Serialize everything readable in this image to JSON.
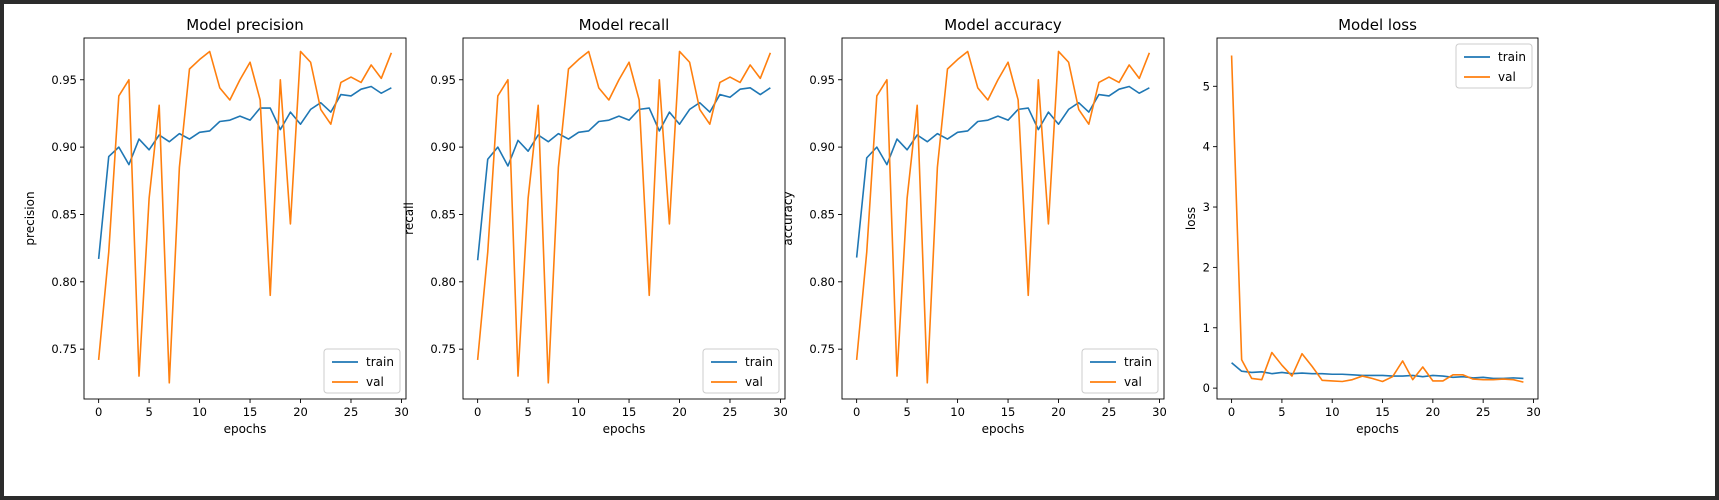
{
  "colors": {
    "train": "#1f77b4",
    "val": "#ff7f0e",
    "axis": "#000000",
    "background": "#ffffff",
    "frame": "#2b2b2b"
  },
  "chart_data": [
    {
      "type": "line",
      "title": "Model precision",
      "xlabel": "epochs",
      "ylabel": "precision",
      "xlim": [
        -1.45,
        30.45
      ],
      "ylim": [
        0.713,
        0.981
      ],
      "xticks": [
        0,
        5,
        10,
        15,
        20,
        25,
        30
      ],
      "yticks": [
        0.75,
        0.8,
        0.85,
        0.9,
        0.95
      ],
      "ytick_labels": [
        "0.75",
        "0.80",
        "0.85",
        "0.90",
        "0.95"
      ],
      "legend": "lower-right",
      "grid": false,
      "x": [
        0,
        1,
        2,
        3,
        4,
        5,
        6,
        7,
        8,
        9,
        10,
        11,
        12,
        13,
        14,
        15,
        16,
        17,
        18,
        19,
        20,
        21,
        22,
        23,
        24,
        25,
        26,
        27,
        28,
        29
      ],
      "series": [
        {
          "name": "train",
          "color": "#1f77b4",
          "values": [
            0.817,
            0.893,
            0.9,
            0.887,
            0.906,
            0.898,
            0.909,
            0.904,
            0.91,
            0.906,
            0.911,
            0.912,
            0.919,
            0.92,
            0.923,
            0.92,
            0.929,
            0.929,
            0.913,
            0.926,
            0.917,
            0.928,
            0.933,
            0.926,
            0.939,
            0.938,
            0.943,
            0.945,
            0.94,
            0.944
          ]
        },
        {
          "name": "val",
          "color": "#ff7f0e",
          "values": [
            0.742,
            0.822,
            0.938,
            0.95,
            0.73,
            0.862,
            0.931,
            0.725,
            0.885,
            0.958,
            0.965,
            0.971,
            0.944,
            0.935,
            0.95,
            0.963,
            0.935,
            0.79,
            0.95,
            0.843,
            0.971,
            0.963,
            0.928,
            0.917,
            0.948,
            0.952,
            0.948,
            0.961,
            0.951,
            0.97
          ]
        }
      ]
    },
    {
      "type": "line",
      "title": "Model recall",
      "xlabel": "epochs",
      "ylabel": "recall",
      "xlim": [
        -1.45,
        30.45
      ],
      "ylim": [
        0.713,
        0.981
      ],
      "xticks": [
        0,
        5,
        10,
        15,
        20,
        25,
        30
      ],
      "yticks": [
        0.75,
        0.8,
        0.85,
        0.9,
        0.95
      ],
      "ytick_labels": [
        "0.75",
        "0.80",
        "0.85",
        "0.90",
        "0.95"
      ],
      "legend": "lower-right",
      "grid": false,
      "x": [
        0,
        1,
        2,
        3,
        4,
        5,
        6,
        7,
        8,
        9,
        10,
        11,
        12,
        13,
        14,
        15,
        16,
        17,
        18,
        19,
        20,
        21,
        22,
        23,
        24,
        25,
        26,
        27,
        28,
        29
      ],
      "series": [
        {
          "name": "train",
          "color": "#1f77b4",
          "values": [
            0.816,
            0.891,
            0.9,
            0.886,
            0.905,
            0.897,
            0.909,
            0.904,
            0.91,
            0.906,
            0.911,
            0.912,
            0.919,
            0.92,
            0.923,
            0.92,
            0.928,
            0.929,
            0.912,
            0.926,
            0.917,
            0.928,
            0.933,
            0.926,
            0.939,
            0.937,
            0.943,
            0.944,
            0.939,
            0.944
          ]
        },
        {
          "name": "val",
          "color": "#ff7f0e",
          "values": [
            0.742,
            0.822,
            0.938,
            0.95,
            0.73,
            0.862,
            0.931,
            0.725,
            0.885,
            0.958,
            0.965,
            0.971,
            0.944,
            0.935,
            0.95,
            0.963,
            0.935,
            0.79,
            0.95,
            0.843,
            0.971,
            0.963,
            0.928,
            0.917,
            0.948,
            0.952,
            0.948,
            0.961,
            0.951,
            0.97
          ]
        }
      ]
    },
    {
      "type": "line",
      "title": "Model accuracy",
      "xlabel": "epochs",
      "ylabel": "accuracy",
      "xlim": [
        -1.45,
        30.45
      ],
      "ylim": [
        0.713,
        0.981
      ],
      "xticks": [
        0,
        5,
        10,
        15,
        20,
        25,
        30
      ],
      "yticks": [
        0.75,
        0.8,
        0.85,
        0.9,
        0.95
      ],
      "ytick_labels": [
        "0.75",
        "0.80",
        "0.85",
        "0.90",
        "0.95"
      ],
      "legend": "lower-right",
      "grid": false,
      "x": [
        0,
        1,
        2,
        3,
        4,
        5,
        6,
        7,
        8,
        9,
        10,
        11,
        12,
        13,
        14,
        15,
        16,
        17,
        18,
        19,
        20,
        21,
        22,
        23,
        24,
        25,
        26,
        27,
        28,
        29
      ],
      "series": [
        {
          "name": "train",
          "color": "#1f77b4",
          "values": [
            0.818,
            0.892,
            0.9,
            0.887,
            0.906,
            0.898,
            0.909,
            0.904,
            0.91,
            0.906,
            0.911,
            0.912,
            0.919,
            0.92,
            0.923,
            0.92,
            0.928,
            0.929,
            0.913,
            0.926,
            0.917,
            0.928,
            0.933,
            0.926,
            0.939,
            0.938,
            0.943,
            0.945,
            0.94,
            0.944
          ]
        },
        {
          "name": "val",
          "color": "#ff7f0e",
          "values": [
            0.742,
            0.822,
            0.938,
            0.95,
            0.73,
            0.862,
            0.931,
            0.725,
            0.885,
            0.958,
            0.965,
            0.971,
            0.944,
            0.935,
            0.95,
            0.963,
            0.935,
            0.79,
            0.95,
            0.843,
            0.971,
            0.963,
            0.928,
            0.917,
            0.948,
            0.952,
            0.948,
            0.961,
            0.951,
            0.97
          ]
        }
      ]
    },
    {
      "type": "line",
      "title": "Model loss",
      "xlabel": "epochs",
      "ylabel": "loss",
      "xlim": [
        -1.45,
        30.45
      ],
      "ylim": [
        -0.18,
        5.8
      ],
      "xticks": [
        0,
        5,
        10,
        15,
        20,
        25,
        30
      ],
      "yticks": [
        0,
        1,
        2,
        3,
        4,
        5
      ],
      "ytick_labels": [
        "0",
        "1",
        "2",
        "3",
        "4",
        "5"
      ],
      "legend": "upper-right",
      "grid": false,
      "x": [
        0,
        1,
        2,
        3,
        4,
        5,
        6,
        7,
        8,
        9,
        10,
        11,
        12,
        13,
        14,
        15,
        16,
        17,
        18,
        19,
        20,
        21,
        22,
        23,
        24,
        25,
        26,
        27,
        28,
        29
      ],
      "series": [
        {
          "name": "train",
          "color": "#1f77b4",
          "values": [
            0.42,
            0.28,
            0.26,
            0.27,
            0.24,
            0.26,
            0.24,
            0.25,
            0.24,
            0.24,
            0.23,
            0.23,
            0.22,
            0.21,
            0.21,
            0.21,
            0.2,
            0.2,
            0.21,
            0.19,
            0.21,
            0.2,
            0.18,
            0.19,
            0.17,
            0.18,
            0.16,
            0.16,
            0.17,
            0.16
          ]
        },
        {
          "name": "val",
          "color": "#ff7f0e",
          "values": [
            5.51,
            0.47,
            0.16,
            0.14,
            0.59,
            0.38,
            0.2,
            0.57,
            0.36,
            0.13,
            0.12,
            0.11,
            0.14,
            0.2,
            0.16,
            0.11,
            0.19,
            0.45,
            0.14,
            0.35,
            0.12,
            0.12,
            0.22,
            0.22,
            0.15,
            0.14,
            0.14,
            0.15,
            0.14,
            0.1
          ]
        }
      ]
    }
  ]
}
